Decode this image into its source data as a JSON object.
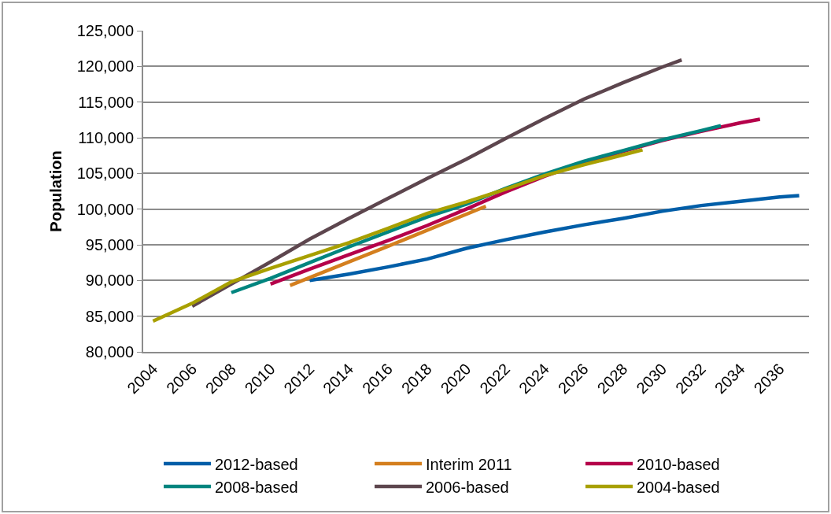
{
  "chart_data": {
    "type": "line",
    "ylabel": "Population",
    "xlim": [
      2003.5,
      2037.5
    ],
    "xticks": [
      2004,
      2006,
      2008,
      2010,
      2012,
      2014,
      2016,
      2018,
      2020,
      2022,
      2024,
      2026,
      2028,
      2030,
      2032,
      2034,
      2036
    ],
    "ylim": [
      80000,
      125000
    ],
    "yticks": [
      {
        "value": 80000,
        "label": "80,000"
      },
      {
        "value": 85000,
        "label": "85,000"
      },
      {
        "value": 90000,
        "label": "90,000"
      },
      {
        "value": 95000,
        "label": "95,000"
      },
      {
        "value": 100000,
        "label": "100,000"
      },
      {
        "value": 105000,
        "label": "105,000"
      },
      {
        "value": 110000,
        "label": "110,000"
      },
      {
        "value": 115000,
        "label": "115,000"
      },
      {
        "value": 120000,
        "label": "120,000"
      },
      {
        "value": 125000,
        "label": "125,000"
      }
    ],
    "grid": "y",
    "legend": "bottom",
    "marker": "none",
    "line_style": "solid",
    "series": [
      {
        "name": "2012-based",
        "color": "#005ea8",
        "x": [
          2012,
          2014,
          2016,
          2018,
          2020,
          2022,
          2024,
          2026,
          2028,
          2030,
          2032,
          2034,
          2036,
          2037
        ],
        "values": [
          90000,
          90900,
          91900,
          93000,
          94500,
          95700,
          96800,
          97800,
          98700,
          99700,
          100500,
          101100,
          101700,
          101900
        ]
      },
      {
        "name": "Interim 2011",
        "color": "#d47f1e",
        "x": [
          2011,
          2016,
          2021
        ],
        "values": [
          89300,
          94800,
          100400
        ]
      },
      {
        "name": "2010-based",
        "color": "#b5004a",
        "x": [
          2010,
          2012,
          2014,
          2016,
          2018,
          2020,
          2022,
          2024,
          2026,
          2028,
          2030,
          2032,
          2034,
          2035
        ],
        "values": [
          89500,
          91600,
          93600,
          95600,
          97700,
          100000,
          102400,
          104600,
          106500,
          108100,
          109600,
          110900,
          112100,
          112600
        ]
      },
      {
        "name": "2008-based",
        "color": "#00857f",
        "x": [
          2008,
          2010,
          2012,
          2014,
          2016,
          2018,
          2020,
          2022,
          2024,
          2026,
          2028,
          2030,
          2032,
          2033
        ],
        "values": [
          88300,
          90300,
          92500,
          94700,
          96800,
          98900,
          100700,
          102900,
          104900,
          106700,
          108200,
          109700,
          111000,
          111700
        ]
      },
      {
        "name": "2006-based",
        "color": "#5d464e",
        "x": [
          2006,
          2008,
          2010,
          2012,
          2014,
          2016,
          2018,
          2020,
          2022,
          2024,
          2026,
          2028,
          2030,
          2031
        ],
        "values": [
          86400,
          89500,
          92600,
          95800,
          98700,
          101500,
          104300,
          107000,
          109900,
          112700,
          115400,
          117700,
          119900,
          120900
        ]
      },
      {
        "name": "2004-based",
        "color": "#a8a000",
        "x": [
          2004,
          2006,
          2008,
          2010,
          2012,
          2014,
          2016,
          2018,
          2020,
          2022,
          2024,
          2026,
          2028,
          2029
        ],
        "values": [
          84300,
          86800,
          89800,
          91700,
          93500,
          95300,
          97300,
          99400,
          101000,
          102800,
          104700,
          106200,
          107600,
          108300
        ]
      }
    ]
  }
}
